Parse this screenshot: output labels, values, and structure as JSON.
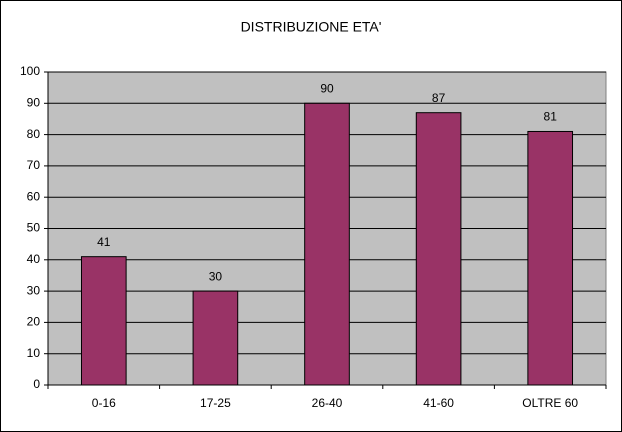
{
  "chart_data": {
    "type": "bar",
    "title": "DISTRIBUZIONE ETA'",
    "categories": [
      "0-16",
      "17-25",
      "26-40",
      "41-60",
      "OLTRE 60"
    ],
    "values": [
      41,
      30,
      90,
      87,
      81
    ],
    "color": "#993366",
    "ylim": [
      0,
      100
    ],
    "yticks": [
      0,
      10,
      20,
      30,
      40,
      50,
      60,
      70,
      80,
      90,
      100
    ],
    "grid": true
  }
}
